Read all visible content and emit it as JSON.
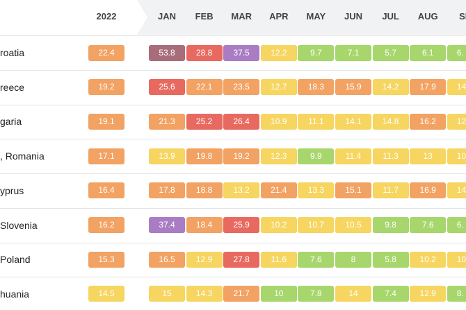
{
  "table": {
    "columns": [
      "2022",
      "JAN",
      "FEB",
      "MAR",
      "APR",
      "MAY",
      "JUN",
      "JUL",
      "AUG",
      "SE"
    ],
    "rows": [
      {
        "label": "roatia",
        "cells": [
          "22.4",
          "53.8",
          "28.8",
          "37.5",
          "12.2",
          "9.7",
          "7.1",
          "5.7",
          "6.1",
          "6."
        ],
        "colors": [
          "#f2a263",
          "#a86c7a",
          "#e8695f",
          "#a97cc4",
          "#f6d560",
          "#a7d66c",
          "#a7d66c",
          "#a7d66c",
          "#a7d66c",
          "#a7d66c"
        ]
      },
      {
        "label": "reece",
        "cells": [
          "19.2",
          "25.6",
          "22.1",
          "23.5",
          "12.7",
          "18.3",
          "15.9",
          "14.2",
          "17.9",
          "14"
        ],
        "colors": [
          "#f2a263",
          "#e8695f",
          "#f2a263",
          "#f2a263",
          "#f6d560",
          "#f2a263",
          "#f2a263",
          "#f6d560",
          "#f2a263",
          "#f6d560"
        ]
      },
      {
        "label": "garia",
        "cells": [
          "19.1",
          "21.3",
          "25.2",
          "26.4",
          "10.9",
          "11.1",
          "14.1",
          "14.8",
          "16.2",
          "12"
        ],
        "colors": [
          "#f2a263",
          "#f2a263",
          "#e8695f",
          "#e8695f",
          "#f6d560",
          "#f6d560",
          "#f6d560",
          "#f6d560",
          "#f2a263",
          "#f6d560"
        ]
      },
      {
        "label": ", Romania",
        "cells": [
          "17.1",
          "13.9",
          "19.8",
          "19.2",
          "12.3",
          "9.9",
          "11.4",
          "11.3",
          "13",
          "10"
        ],
        "colors": [
          "#f2a263",
          "#f6d560",
          "#f2a263",
          "#f2a263",
          "#f6d560",
          "#a7d66c",
          "#f6d560",
          "#f6d560",
          "#f6d560",
          "#f6d560"
        ]
      },
      {
        "label": "yprus",
        "cells": [
          "16.4",
          "17.8",
          "18.8",
          "13.2",
          "21.4",
          "13.3",
          "15.1",
          "11.7",
          "16.9",
          "14"
        ],
        "colors": [
          "#f2a263",
          "#f2a263",
          "#f2a263",
          "#f6d560",
          "#f2a263",
          "#f6d560",
          "#f2a263",
          "#f6d560",
          "#f2a263",
          "#f6d560"
        ]
      },
      {
        "label": "Slovenia",
        "cells": [
          "16.2",
          "37.4",
          "18.4",
          "25.9",
          "10.2",
          "10.7",
          "10.5",
          "9.8",
          "7.6",
          "6."
        ],
        "colors": [
          "#f2a263",
          "#a97cc4",
          "#f2a263",
          "#e8695f",
          "#f6d560",
          "#f6d560",
          "#f6d560",
          "#a7d66c",
          "#a7d66c",
          "#a7d66c"
        ]
      },
      {
        "label": "Poland",
        "cells": [
          "15.3",
          "16.5",
          "12.9",
          "27.8",
          "11.6",
          "7.6",
          "8",
          "5.8",
          "10.2",
          "10"
        ],
        "colors": [
          "#f2a263",
          "#f2a263",
          "#f6d560",
          "#e8695f",
          "#f6d560",
          "#a7d66c",
          "#a7d66c",
          "#a7d66c",
          "#f6d560",
          "#f6d560"
        ]
      },
      {
        "label": "huania",
        "cells": [
          "14.5",
          "15",
          "14.3",
          "21.7",
          "10",
          "7.8",
          "14",
          "7.4",
          "12.9",
          "8."
        ],
        "colors": [
          "#f6d560",
          "#f6d560",
          "#f6d560",
          "#f2a263",
          "#a7d66c",
          "#a7d66c",
          "#f6d560",
          "#a7d66c",
          "#f6d560",
          "#a7d66c"
        ]
      }
    ]
  }
}
